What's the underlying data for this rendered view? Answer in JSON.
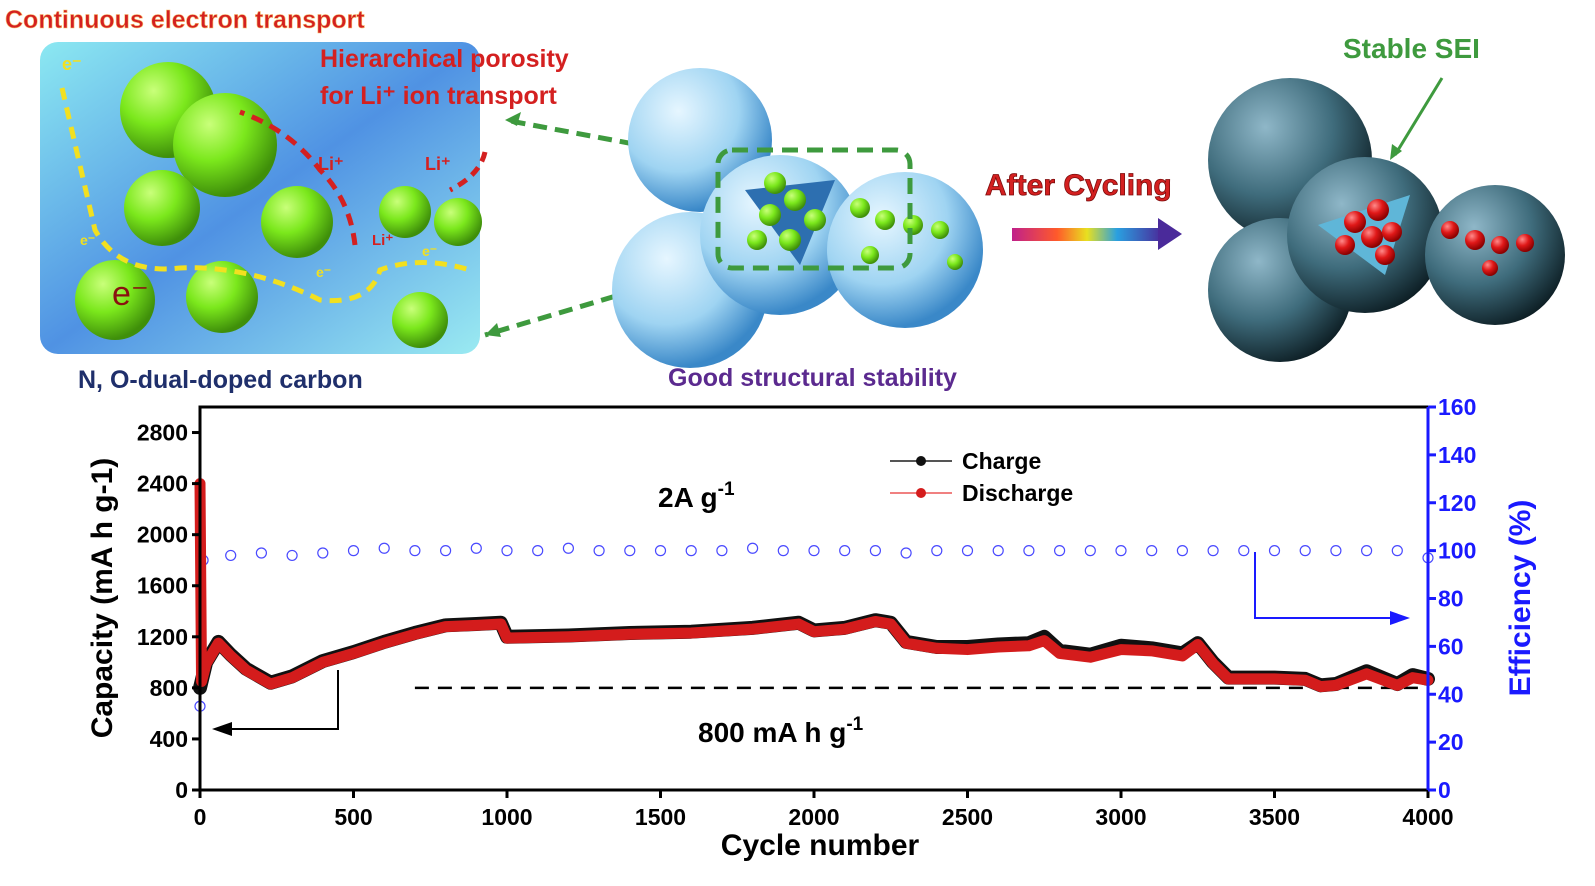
{
  "illustration": {
    "title_electron": "Continuous electron transport",
    "title_porosity_line1": "Hierarchical  porosity",
    "title_porosity_line2": "for Li⁺ ion transport",
    "label_carbon": "N, O-dual-doped carbon",
    "label_stability": "Good structural stability",
    "label_after_cycling": "After Cycling",
    "label_sei": "Stable SEI",
    "electron_symbol": "e⁻",
    "li_symbol": "Li⁺",
    "colors": {
      "red_text": "#d42020",
      "green_text": "#3e9a3e",
      "navy_text": "#1f2f6b",
      "purple_text": "#5b2a8f",
      "sphere_green": "#7be81c",
      "carbon_blue": "#4aa6e0",
      "red_particles": "#e01818"
    }
  },
  "chart_data": {
    "type": "scatter",
    "xlabel": "Cycle number",
    "ylabel": "Capacity (mA h g-1)",
    "ylabel_right": "Efficiency (%)",
    "xlim": [
      0,
      4000
    ],
    "ylim": [
      0,
      3000
    ],
    "ylim_right": [
      0,
      160
    ],
    "xticks": [
      "0",
      "500",
      "1000",
      "1500",
      "2000",
      "2500",
      "3000",
      "3500",
      "4000"
    ],
    "yticks": [
      "0",
      "400",
      "800",
      "1200",
      "1600",
      "2000",
      "2400",
      "2800"
    ],
    "yticks_right": [
      "0",
      "20",
      "40",
      "60",
      "80",
      "100",
      "120",
      "140",
      "160"
    ],
    "annotation_rate": "2A g",
    "annotation_rate_sup": "-1",
    "annotation_ref": "800 mA h g",
    "annotation_ref_sup": "-1",
    "reference_line": 800,
    "legend_position": "top-center",
    "colors": {
      "charge": "#111111",
      "discharge": "#d41c1c",
      "efficiency": "#4a4aff",
      "right_axis": "#1a1aff"
    },
    "series": [
      {
        "name": "Charge",
        "axis": "left",
        "x": [
          0,
          20,
          60,
          100,
          150,
          230,
          300,
          400,
          500,
          600,
          700,
          800,
          900,
          980,
          1000,
          1200,
          1400,
          1600,
          1800,
          1950,
          2000,
          2100,
          2200,
          2250,
          2300,
          2400,
          2500,
          2600,
          2700,
          2750,
          2800,
          2900,
          3000,
          3100,
          3200,
          3250,
          3300,
          3350,
          3500,
          3600,
          3650,
          3700,
          3800,
          3900,
          3950,
          4000
        ],
        "y": [
          800,
          1000,
          1160,
          1060,
          950,
          840,
          890,
          1010,
          1080,
          1160,
          1230,
          1290,
          1300,
          1310,
          1200,
          1210,
          1230,
          1240,
          1270,
          1310,
          1250,
          1270,
          1330,
          1310,
          1160,
          1120,
          1120,
          1140,
          1150,
          1200,
          1090,
          1060,
          1130,
          1110,
          1070,
          1150,
          1000,
          880,
          880,
          870,
          820,
          830,
          930,
          830,
          900,
          870
        ]
      },
      {
        "name": "Discharge",
        "axis": "left",
        "x": [
          0,
          5,
          20,
          60,
          100,
          150,
          230,
          300,
          400,
          500,
          600,
          700,
          800,
          900,
          980,
          1000,
          1200,
          1400,
          1600,
          1800,
          1950,
          2000,
          2100,
          2200,
          2250,
          2300,
          2400,
          2500,
          2600,
          2700,
          2750,
          2800,
          2900,
          3000,
          3100,
          3200,
          3250,
          3300,
          3350,
          3500,
          3600,
          3650,
          3700,
          3800,
          3900,
          3950,
          4000
        ],
        "y": [
          2400,
          850,
          990,
          1150,
          1050,
          940,
          830,
          880,
          1000,
          1070,
          1150,
          1220,
          1280,
          1290,
          1300,
          1190,
          1200,
          1220,
          1230,
          1260,
          1300,
          1240,
          1260,
          1320,
          1300,
          1150,
          1110,
          1100,
          1120,
          1130,
          1170,
          1070,
          1040,
          1100,
          1090,
          1050,
          1140,
          990,
          870,
          870,
          860,
          810,
          820,
          910,
          820,
          880,
          860
        ]
      },
      {
        "axis": "right",
        "x": [
          0,
          10,
          100,
          200,
          300,
          400,
          500,
          600,
          700,
          800,
          900,
          1000,
          1100,
          1200,
          1300,
          1400,
          1500,
          1600,
          1700,
          1800,
          1900,
          2000,
          2100,
          2200,
          2300,
          2400,
          2500,
          2600,
          2700,
          2800,
          2900,
          3000,
          3100,
          3200,
          3300,
          3400,
          3500,
          3600,
          3700,
          3800,
          3900,
          4000
        ],
        "y": [
          35,
          96,
          98,
          99,
          98,
          99,
          100,
          101,
          100,
          100,
          101,
          100,
          100,
          101,
          100,
          100,
          100,
          100,
          100,
          101,
          100,
          100,
          100,
          100,
          99,
          100,
          100,
          100,
          100,
          100,
          100,
          100,
          100,
          100,
          100,
          100,
          100,
          100,
          100,
          100,
          100,
          97
        ]
      }
    ]
  }
}
